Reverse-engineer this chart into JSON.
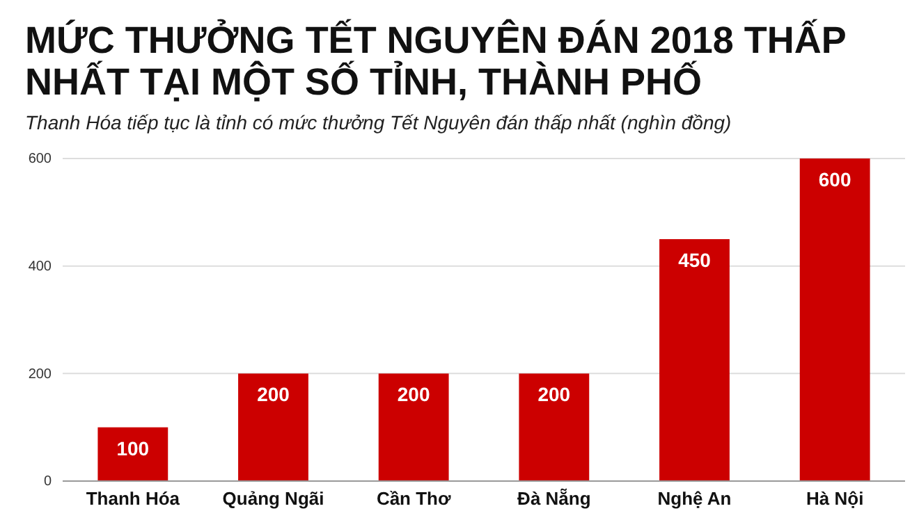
{
  "chart_data": {
    "type": "bar",
    "title": "MỨC THƯỞNG TẾT NGUYÊN ĐÁN 2018 THẤP NHẤT TẠI MỘT SỐ TỈNH, THÀNH PHỐ",
    "subtitle": "Thanh Hóa tiếp tục là tỉnh có mức thưởng Tết Nguyên đán thấp nhất (nghìn đồng)",
    "categories": [
      "Thanh Hóa",
      "Quảng Ngãi",
      "Cần Thơ",
      "Đà Nẵng",
      "Nghệ An",
      "Hà Nội"
    ],
    "values": [
      100,
      200,
      200,
      200,
      450,
      600
    ],
    "color": "#cc0000",
    "ylim": [
      0,
      600
    ],
    "yticks": [
      0,
      200,
      400,
      600
    ],
    "grid": "y",
    "data_labels": true
  }
}
